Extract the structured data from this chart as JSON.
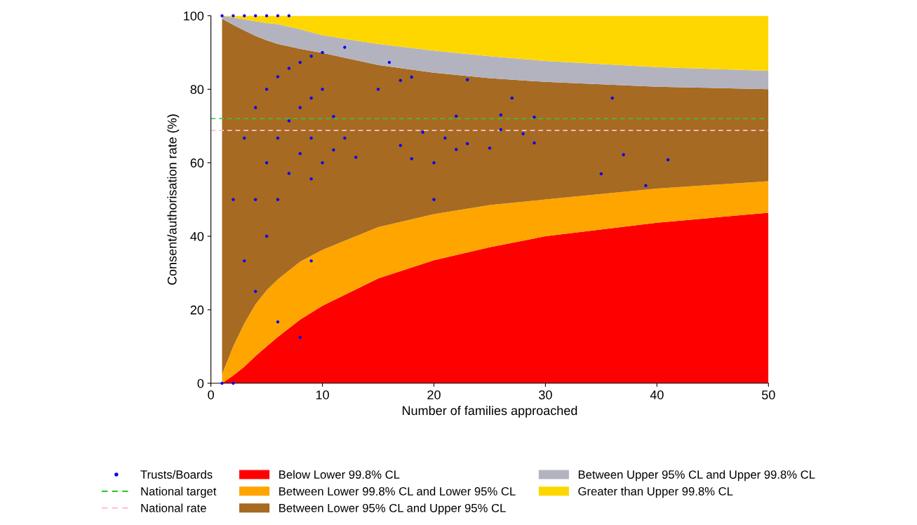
{
  "chart_data": {
    "type": "area",
    "stacked": true,
    "xlabel": "Number of families approached",
    "ylabel": "Consent/authorisation rate (%)",
    "x": [
      1,
      2,
      3,
      4,
      5,
      6,
      8,
      10,
      15,
      20,
      25,
      30,
      40,
      50
    ],
    "series": [
      {
        "name": "Below Lower 99.8% CL",
        "color": "#ff0000",
        "values": [
          0,
          2.1,
          4.5,
          7.4,
          10,
          12.6,
          17.3,
          21.1,
          28.5,
          33.5,
          37,
          40,
          43.7,
          46.4
        ]
      },
      {
        "name": "Between Lower 99.8% CL and Lower 95% CL",
        "color": "#ffa500",
        "values": [
          2.5,
          7.9,
          11.8,
          14.1,
          15.3,
          15.7,
          15.8,
          15.2,
          14,
          12.5,
          11.5,
          10,
          9.3,
          8.6
        ]
      },
      {
        "name": "Between Lower 95% CL and Upper 95% CL",
        "color": "#a66a22",
        "values": [
          96.7,
          87.5,
          79.7,
          73,
          68,
          64,
          57.9,
          53.6,
          44.1,
          38.5,
          34.5,
          32,
          27.7,
          25
        ]
      },
      {
        "name": "Between Upper 95% CL and Upper 99.8% CL",
        "color": "#b3b3c0",
        "values": [
          0.8,
          2,
          3,
          4,
          4.7,
          5.4,
          5.3,
          4.8,
          5.7,
          6,
          6,
          5.7,
          5.3,
          5
        ]
      },
      {
        "name": "Greater than Upper 99.8% CL",
        "color": "#ffd700",
        "values": [
          0,
          0.5,
          1,
          1.5,
          2,
          2.3,
          3.7,
          5.3,
          7.7,
          9.5,
          11,
          12.3,
          14,
          15
        ]
      },
      {
        "name": "Trusts/Boards",
        "type": "scatter",
        "color": "#0000ff",
        "x": [
          1,
          2,
          3,
          4,
          5,
          6,
          7,
          12,
          10,
          9,
          8,
          7,
          6,
          5,
          10,
          4,
          8,
          9,
          11,
          7,
          3,
          6,
          9,
          12,
          10,
          5,
          8,
          11,
          13,
          7,
          9,
          2,
          4,
          6,
          5,
          3,
          9,
          4,
          6,
          8,
          1,
          2,
          16,
          17,
          18,
          23,
          15,
          27,
          36,
          22,
          26,
          29,
          19,
          26,
          28,
          17,
          21,
          23,
          29,
          22,
          25,
          18,
          20,
          41,
          37,
          35,
          39,
          20
        ],
        "values": [
          100,
          100,
          100,
          100,
          100,
          100,
          100,
          91.4,
          90,
          89,
          87.3,
          85.7,
          83.4,
          80,
          80,
          75,
          75,
          77.6,
          72.6,
          71.4,
          66.7,
          66.7,
          66.7,
          66.7,
          60,
          60,
          62.5,
          63.5,
          61.5,
          57.1,
          55.6,
          50,
          50,
          50,
          40,
          33.3,
          33.3,
          25,
          16.7,
          12.5,
          0,
          0,
          87.3,
          82.4,
          83.3,
          82.6,
          80,
          77.6,
          77.6,
          72.7,
          73,
          72.4,
          68.3,
          69,
          67.9,
          64.7,
          66.7,
          65.2,
          65.4,
          63.6,
          64,
          61.1,
          60,
          60.8,
          62.2,
          57,
          53.8,
          50
        ]
      }
    ],
    "ref_lines": [
      {
        "axis": "y",
        "value": 72,
        "label": "National target",
        "color": "#33cc33",
        "line_style": "dashed"
      },
      {
        "axis": "y",
        "value": 68.8,
        "label": "National rate",
        "color": "#ffc0cb",
        "line_style": "dashed"
      }
    ],
    "xlim": [
      0,
      50
    ],
    "xticks": [
      0,
      10,
      20,
      30,
      40,
      50
    ],
    "ylim": [
      0,
      100
    ],
    "yticks": [
      0,
      20,
      40,
      60,
      80,
      100
    ],
    "grid": false,
    "legend": "bottom"
  }
}
